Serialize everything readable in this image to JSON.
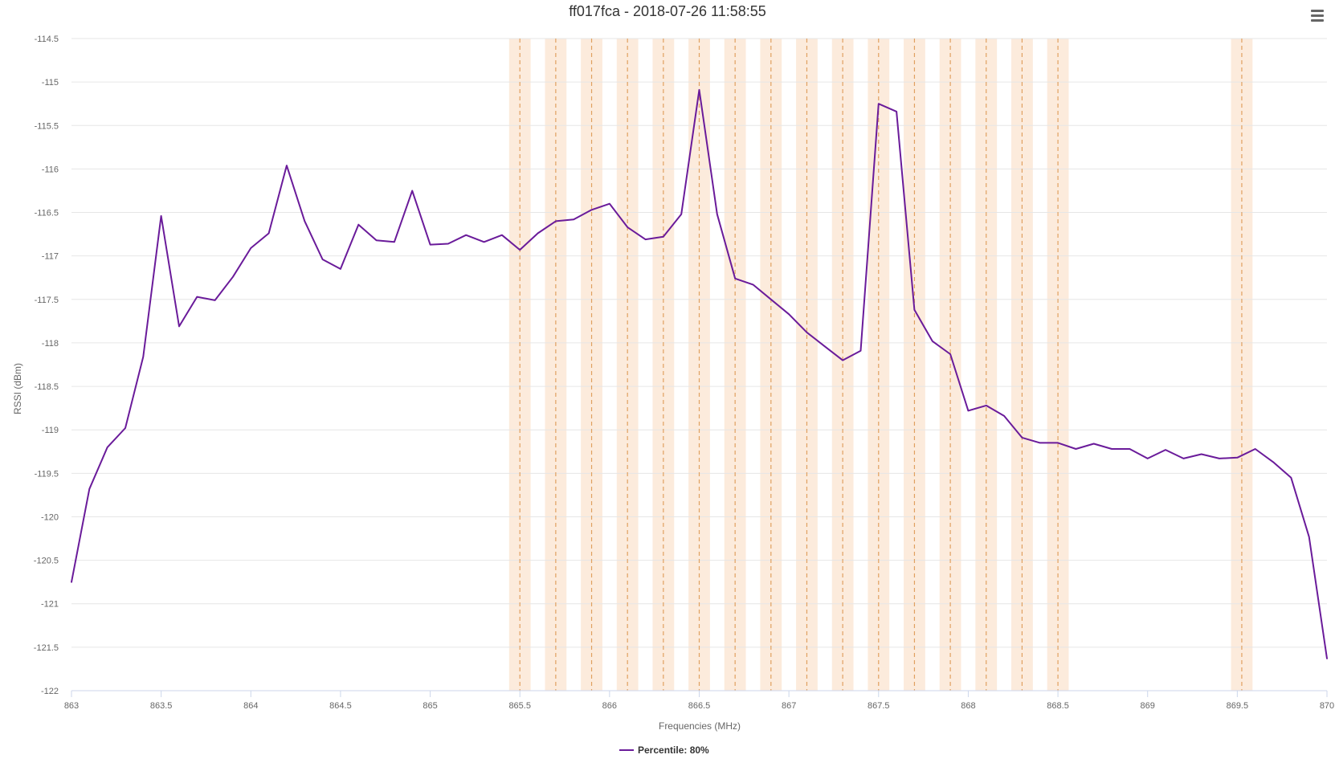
{
  "chart_data": {
    "type": "line",
    "title": "ff017fca - 2018-07-26 11:58:55",
    "xlabel": "Frequencies (MHz)",
    "ylabel": "RSSI (dBm)",
    "xlim": [
      863,
      870
    ],
    "ylim": [
      -122,
      -114.5
    ],
    "x_ticks": [
      863,
      863.5,
      864,
      864.5,
      865,
      865.5,
      866,
      866.5,
      867,
      867.5,
      868,
      868.5,
      869,
      869.5,
      870
    ],
    "y_ticks": [
      -114.5,
      -115,
      -115.5,
      -116,
      -116.5,
      -117,
      -117.5,
      -118,
      -118.5,
      -119,
      -119.5,
      -120,
      -120.5,
      -121,
      -121.5,
      -122
    ],
    "grid": "horizontal",
    "legend": "bottom-center",
    "series": [
      {
        "name": "Percentile: 80%",
        "color": "#6a1b9a",
        "x": [
          863.0,
          863.1,
          863.2,
          863.3,
          863.4,
          863.5,
          863.6,
          863.7,
          863.8,
          863.9,
          864.0,
          864.1,
          864.2,
          864.3,
          864.4,
          864.5,
          864.6,
          864.7,
          864.8,
          864.9,
          865.0,
          865.1,
          865.2,
          865.3,
          865.4,
          865.5,
          865.6,
          865.7,
          865.8,
          865.9,
          866.0,
          866.1,
          866.2,
          866.3,
          866.4,
          866.5,
          866.6,
          866.7,
          866.8,
          866.9,
          867.0,
          867.1,
          867.2,
          867.3,
          867.4,
          867.5,
          867.6,
          867.7,
          867.8,
          867.9,
          868.0,
          868.1,
          868.2,
          868.3,
          868.4,
          868.5,
          868.6,
          868.7,
          868.8,
          868.9,
          869.0,
          869.1,
          869.2,
          869.3,
          869.4,
          869.5,
          869.6,
          869.7,
          869.8,
          869.9,
          870.0
        ],
        "y": [
          -120.75,
          -119.68,
          -119.2,
          -118.98,
          -118.16,
          -116.54,
          -117.81,
          -117.47,
          -117.51,
          -117.24,
          -116.91,
          -116.74,
          -115.96,
          -116.6,
          -117.04,
          -117.15,
          -116.64,
          -116.82,
          -116.84,
          -116.25,
          -116.87,
          -116.86,
          -116.76,
          -116.84,
          -116.76,
          -116.93,
          -116.74,
          -116.6,
          -116.58,
          -116.47,
          -116.4,
          -116.67,
          -116.81,
          -116.78,
          -116.52,
          -115.09,
          -116.52,
          -117.26,
          -117.33,
          -117.5,
          -117.67,
          -117.88,
          -118.04,
          -118.2,
          -118.09,
          -115.25,
          -115.34,
          -117.62,
          -117.98,
          -118.13,
          -118.78,
          -118.72,
          -118.84,
          -119.09,
          -119.15,
          -119.15,
          -119.22,
          -119.16,
          -119.22,
          -119.22,
          -119.33,
          -119.23,
          -119.33,
          -119.28,
          -119.33,
          -119.32,
          -119.22,
          -119.37,
          -119.55,
          -120.23,
          -121.63
        ]
      }
    ],
    "plot_bands": [
      {
        "from": 865.44,
        "to": 865.56,
        "center": 865.5
      },
      {
        "from": 865.64,
        "to": 865.76,
        "center": 865.7
      },
      {
        "from": 865.84,
        "to": 865.96,
        "center": 865.9
      },
      {
        "from": 866.04,
        "to": 866.16,
        "center": 866.1
      },
      {
        "from": 866.24,
        "to": 866.36,
        "center": 866.3
      },
      {
        "from": 866.44,
        "to": 866.56,
        "center": 866.5
      },
      {
        "from": 866.64,
        "to": 866.76,
        "center": 866.7
      },
      {
        "from": 866.84,
        "to": 866.96,
        "center": 866.9
      },
      {
        "from": 867.04,
        "to": 867.16,
        "center": 867.1
      },
      {
        "from": 867.24,
        "to": 867.36,
        "center": 867.3
      },
      {
        "from": 867.44,
        "to": 867.56,
        "center": 867.5
      },
      {
        "from": 867.64,
        "to": 867.76,
        "center": 867.7
      },
      {
        "from": 867.84,
        "to": 867.96,
        "center": 867.9
      },
      {
        "from": 868.04,
        "to": 868.16,
        "center": 868.1
      },
      {
        "from": 868.24,
        "to": 868.36,
        "center": 868.3
      },
      {
        "from": 868.44,
        "to": 868.56,
        "center": 868.5
      },
      {
        "from": 869.465,
        "to": 869.585,
        "center": 869.525
      }
    ],
    "colors": {
      "band_fill": "#fcebdc",
      "band_line": "#e0a060",
      "grid": "#e6e6e6",
      "axis_line": "#ccd6eb",
      "tick_text": "#666666",
      "title_text": "#333333"
    }
  },
  "toolbar": {
    "menu_icon": "hamburger-menu-icon"
  }
}
